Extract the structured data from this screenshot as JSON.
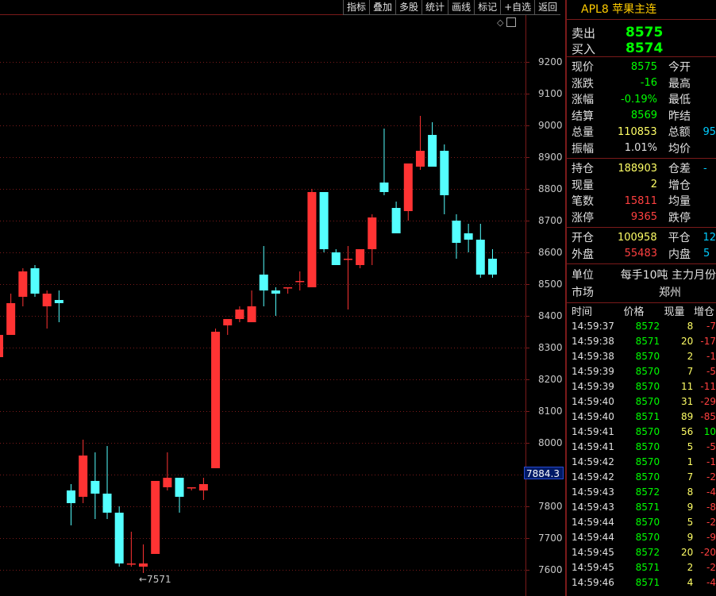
{
  "toolbar": [
    "指标",
    "叠加",
    "多股",
    "统计",
    "画线",
    "标记",
    "+自选",
    "返回"
  ],
  "chart": {
    "ymin": 7550,
    "ymax": 9300,
    "ticks": [
      9200,
      9100,
      9000,
      8900,
      8800,
      8700,
      8600,
      8500,
      8400,
      8300,
      8200,
      8100,
      8000,
      7900,
      7800,
      7700,
      7600
    ],
    "current_price": "7884.3",
    "low_marker": "←7571",
    "candles": [
      {
        "o": 8270,
        "h": 8340,
        "l": 8230,
        "c": 8340
      },
      {
        "o": 8340,
        "h": 8470,
        "l": 8340,
        "c": 8440
      },
      {
        "o": 8460,
        "h": 8550,
        "l": 8430,
        "c": 8540
      },
      {
        "o": 8550,
        "h": 8560,
        "l": 8460,
        "c": 8470
      },
      {
        "o": 8430,
        "h": 8480,
        "l": 8360,
        "c": 8470
      },
      {
        "o": 8450,
        "h": 8480,
        "l": 8380,
        "c": 8440
      },
      {
        "o": 7850,
        "h": 7870,
        "l": 7740,
        "c": 7810
      },
      {
        "o": 7830,
        "h": 8010,
        "l": 7810,
        "c": 7960
      },
      {
        "o": 7880,
        "h": 7970,
        "l": 7760,
        "c": 7840
      },
      {
        "o": 7840,
        "h": 7990,
        "l": 7760,
        "c": 7780
      },
      {
        "o": 7780,
        "h": 7800,
        "l": 7610,
        "c": 7620
      },
      {
        "o": 7620,
        "h": 7720,
        "l": 7610,
        "c": 7620
      },
      {
        "o": 7610,
        "h": 7680,
        "l": 7590,
        "c": 7620
      },
      {
        "o": 7650,
        "h": 7880,
        "l": 7650,
        "c": 7880
      },
      {
        "o": 7860,
        "h": 7970,
        "l": 7850,
        "c": 7890
      },
      {
        "o": 7890,
        "h": 7890,
        "l": 7780,
        "c": 7830
      },
      {
        "o": 7860,
        "h": 7860,
        "l": 7850,
        "c": 7860
      },
      {
        "o": 7850,
        "h": 7890,
        "l": 7820,
        "c": 7870
      },
      {
        "o": 7920,
        "h": 8360,
        "l": 7920,
        "c": 8350
      },
      {
        "o": 8370,
        "h": 8390,
        "l": 8340,
        "c": 8390
      },
      {
        "o": 8390,
        "h": 8430,
        "l": 8380,
        "c": 8420
      },
      {
        "o": 8380,
        "h": 8480,
        "l": 8380,
        "c": 8430
      },
      {
        "o": 8530,
        "h": 8620,
        "l": 8430,
        "c": 8480
      },
      {
        "o": 8480,
        "h": 8490,
        "l": 8400,
        "c": 8470
      },
      {
        "o": 8490,
        "h": 8490,
        "l": 8470,
        "c": 8490
      },
      {
        "o": 8510,
        "h": 8540,
        "l": 8480,
        "c": 8510
      },
      {
        "o": 8490,
        "h": 8800,
        "l": 8490,
        "c": 8790
      },
      {
        "o": 8790,
        "h": 8790,
        "l": 8600,
        "c": 8610
      },
      {
        "o": 8600,
        "h": 8610,
        "l": 8560,
        "c": 8560
      },
      {
        "o": 8580,
        "h": 8620,
        "l": 8420,
        "c": 8580
      },
      {
        "o": 8560,
        "h": 8610,
        "l": 8550,
        "c": 8610
      },
      {
        "o": 8610,
        "h": 8720,
        "l": 8560,
        "c": 8710
      },
      {
        "o": 8820,
        "h": 8990,
        "l": 8780,
        "c": 8790
      },
      {
        "o": 8740,
        "h": 8760,
        "l": 8670,
        "c": 8660
      },
      {
        "o": 8730,
        "h": 8880,
        "l": 8700,
        "c": 8880
      },
      {
        "o": 8870,
        "h": 9030,
        "l": 8860,
        "c": 8920
      },
      {
        "o": 8970,
        "h": 9010,
        "l": 8870,
        "c": 8870
      },
      {
        "o": 8920,
        "h": 8940,
        "l": 8720,
        "c": 8780
      },
      {
        "o": 8700,
        "h": 8720,
        "l": 8580,
        "c": 8630
      },
      {
        "o": 8660,
        "h": 8690,
        "l": 8600,
        "c": 8640
      },
      {
        "o": 8640,
        "h": 8690,
        "l": 8520,
        "c": 8530
      },
      {
        "o": 8580,
        "h": 8610,
        "l": 8520,
        "c": 8530
      }
    ]
  },
  "panel": {
    "title": "APL8 苹果主连",
    "sell_label": "卖出",
    "sell_price": "8575",
    "buy_label": "买入",
    "buy_price": "8574",
    "quote1": [
      {
        "l1": "现价",
        "v1": "8575",
        "c1": "green",
        "l2": "今开",
        "v2": ""
      },
      {
        "l1": "涨跌",
        "v1": "-16",
        "c1": "green",
        "l2": "最高",
        "v2": ""
      },
      {
        "l1": "涨幅",
        "v1": "-0.19%",
        "c1": "green",
        "l2": "最低",
        "v2": ""
      },
      {
        "l1": "结算",
        "v1": "8569",
        "c1": "green",
        "l2": "昨结",
        "v2": ""
      },
      {
        "l1": "总量",
        "v1": "110853",
        "c1": "yellow",
        "l2": "总额",
        "v2": "95"
      },
      {
        "l1": "振幅",
        "v1": "1.01%",
        "c1": "white",
        "l2": "均价",
        "v2": ""
      }
    ],
    "quote2": [
      {
        "l1": "持仓",
        "v1": "188903",
        "c1": "yellow",
        "l2": "仓差",
        "v2": "-"
      },
      {
        "l1": "现量",
        "v1": "2",
        "c1": "yellow",
        "l2": "增仓",
        "v2": ""
      },
      {
        "l1": "笔数",
        "v1": "15811",
        "c1": "red",
        "l2": "均量",
        "v2": ""
      },
      {
        "l1": "涨停",
        "v1": "9365",
        "c1": "red",
        "l2": "跌停",
        "v2": ""
      }
    ],
    "quote3": [
      {
        "l1": "开仓",
        "v1": "100958",
        "c1": "yellow",
        "l2": "平仓",
        "v2": "12"
      },
      {
        "l1": "外盘",
        "v1": "55483",
        "c1": "red",
        "l2": "内盘",
        "v2": "5"
      }
    ],
    "unit_label": "单位",
    "unit_value": "每手10吨  主力月份",
    "market_label": "市场",
    "market_value": "郑州",
    "ticks_header": {
      "time": "时间",
      "price": "价格",
      "vol": "现量",
      "chg": "增仓"
    },
    "ticks": [
      {
        "time": "14:59:37",
        "price": "8572",
        "vol": "8",
        "chg": "-7"
      },
      {
        "time": "14:59:38",
        "price": "8571",
        "vol": "20",
        "chg": "-17"
      },
      {
        "time": "14:59:38",
        "price": "8570",
        "vol": "2",
        "chg": "-1"
      },
      {
        "time": "14:59:39",
        "price": "8570",
        "vol": "7",
        "chg": "-5"
      },
      {
        "time": "14:59:39",
        "price": "8570",
        "vol": "11",
        "chg": "-11"
      },
      {
        "time": "14:59:40",
        "price": "8570",
        "vol": "31",
        "chg": "-29"
      },
      {
        "time": "14:59:40",
        "price": "8571",
        "vol": "89",
        "chg": "-85"
      },
      {
        "time": "14:59:41",
        "price": "8570",
        "vol": "56",
        "chg": "10"
      },
      {
        "time": "14:59:41",
        "price": "8570",
        "vol": "5",
        "chg": "-5"
      },
      {
        "time": "14:59:42",
        "price": "8570",
        "vol": "1",
        "chg": "-1"
      },
      {
        "time": "14:59:42",
        "price": "8570",
        "vol": "7",
        "chg": "-2"
      },
      {
        "time": "14:59:43",
        "price": "8572",
        "vol": "8",
        "chg": "-4"
      },
      {
        "time": "14:59:43",
        "price": "8571",
        "vol": "9",
        "chg": "-8"
      },
      {
        "time": "14:59:44",
        "price": "8570",
        "vol": "5",
        "chg": "-2"
      },
      {
        "time": "14:59:44",
        "price": "8570",
        "vol": "9",
        "chg": "-9"
      },
      {
        "time": "14:59:45",
        "price": "8572",
        "vol": "20",
        "chg": "-20"
      },
      {
        "time": "14:59:45",
        "price": "8571",
        "vol": "2",
        "chg": "-2"
      },
      {
        "time": "14:59:46",
        "price": "8571",
        "vol": "4",
        "chg": "-4"
      }
    ]
  }
}
